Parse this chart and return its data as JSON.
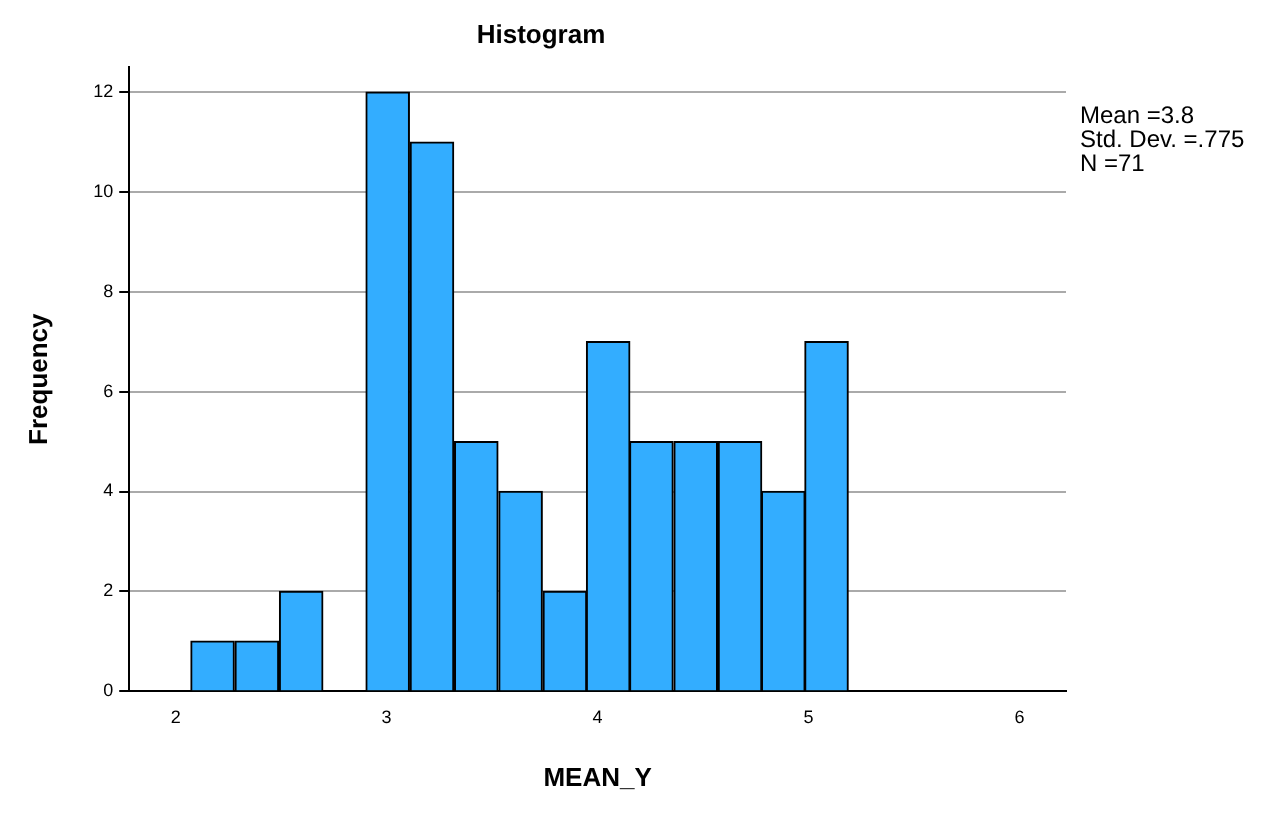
{
  "chart_data": {
    "type": "histogram",
    "title": "Histogram",
    "xlabel": "MEAN_Y",
    "ylabel": "Frequency",
    "bins": [
      2.07,
      2.28,
      2.49,
      2.7,
      2.9,
      3.11,
      3.32,
      3.53,
      3.74,
      3.95,
      4.15,
      4.36,
      4.57,
      4.78,
      4.98,
      5.19
    ],
    "values": [
      1,
      1,
      2,
      0,
      12,
      11,
      5,
      4,
      2,
      7,
      5,
      5,
      5,
      4,
      7
    ],
    "color": "#33adff",
    "xlim": [
      1.78,
      6.22
    ],
    "xticks": [
      2,
      3,
      4,
      5,
      6
    ],
    "ylim": [
      0,
      12.5
    ],
    "yticks": [
      0,
      2,
      4,
      6,
      8,
      10,
      12
    ],
    "grid": "y",
    "legend": false,
    "annotations": [
      "Mean =3.8",
      "Std. Dev. =.775",
      "N =71"
    ]
  }
}
